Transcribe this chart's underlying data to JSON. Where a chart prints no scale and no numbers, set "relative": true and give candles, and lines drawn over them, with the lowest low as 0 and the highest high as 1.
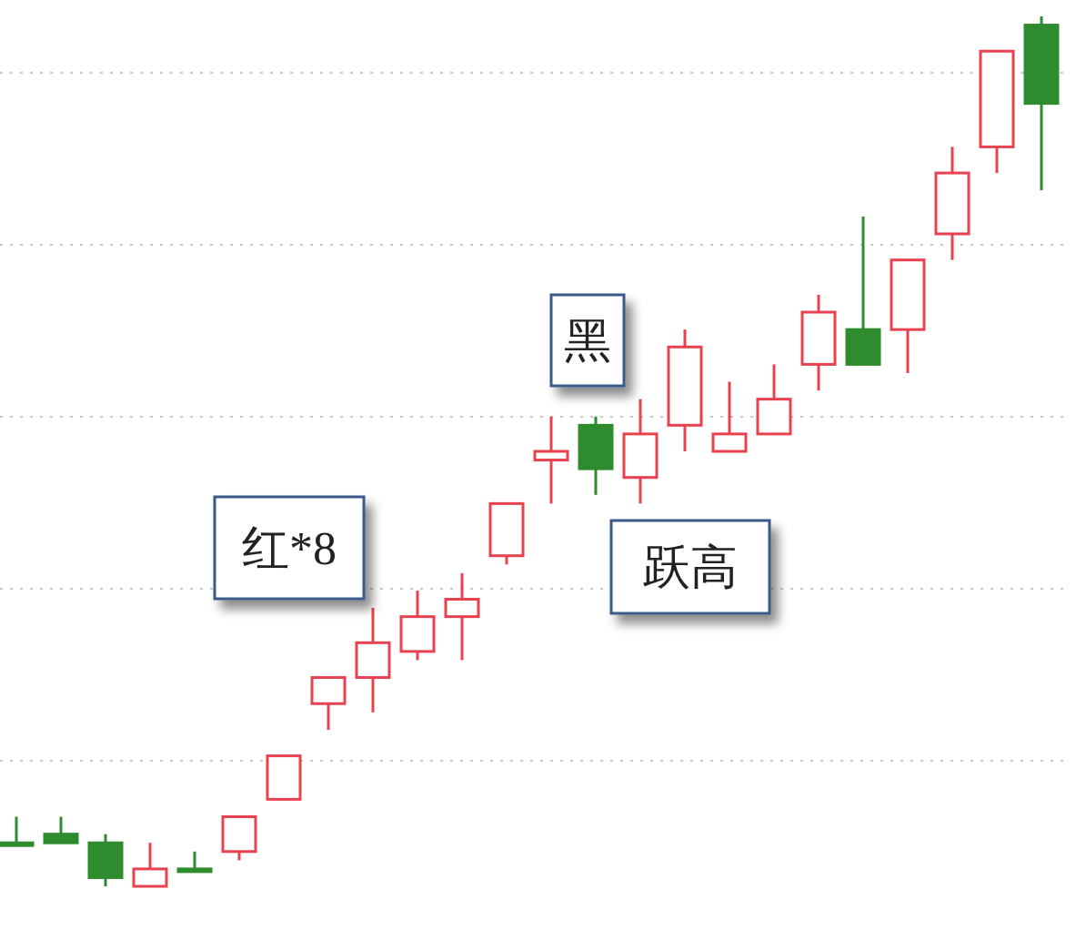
{
  "chart_data": {
    "type": "candlestick",
    "relative": true,
    "grid": "y",
    "categories": [
      null,
      null,
      null,
      null,
      null,
      null,
      null,
      null,
      null,
      null,
      null,
      null,
      null,
      null,
      null,
      null,
      null,
      null,
      null,
      null,
      null,
      null,
      null,
      null
    ],
    "ohlc": [
      [
        0.05,
        0.08,
        0.05,
        0.05
      ],
      [
        0.06,
        0.08,
        0.05,
        0.05
      ],
      [
        0.05,
        0.06,
        0,
        0.01
      ],
      [
        0,
        0.05,
        0,
        0.02
      ],
      [
        0.02,
        0.04,
        0.02,
        0.02
      ],
      [
        0.04,
        0.08,
        0.03,
        0.08
      ],
      [
        0.1,
        0.15,
        0.1,
        0.15
      ],
      [
        0.21,
        0.24,
        0.18,
        0.24
      ],
      [
        0.24,
        0.32,
        0.2,
        0.28
      ],
      [
        0.27,
        0.34,
        0.26,
        0.31
      ],
      [
        0.31,
        0.36,
        0.26,
        0.33
      ],
      [
        0.38,
        0.44,
        0.37,
        0.44
      ],
      [
        0.49,
        0.54,
        0.44,
        0.5
      ],
      [
        0.53,
        0.54,
        0.45,
        0.48
      ],
      [
        0.47,
        0.56,
        0.44,
        0.52
      ],
      [
        0.53,
        0.64,
        0.5,
        0.62
      ],
      [
        0.5,
        0.58,
        0.5,
        0.52
      ],
      [
        0.52,
        0.6,
        0.52,
        0.56
      ],
      [
        0.6,
        0.68,
        0.57,
        0.66
      ],
      [
        0.64,
        0.77,
        0.6,
        0.6
      ],
      [
        0.64,
        0.72,
        0.59,
        0.72
      ],
      [
        0.75,
        0.85,
        0.72,
        0.82
      ],
      [
        0.85,
        0.96,
        0.82,
        0.96
      ],
      [
        0.99,
        1,
        0.8,
        0.9
      ]
    ],
    "colors": [
      "#2e8b2e",
      "#2e8b2e",
      "#2e8b2e",
      "#e8414f",
      "#2e8b2e",
      "#e8414f",
      "#e8414f",
      "#e8414f",
      "#e8414f",
      "#e8414f",
      "#e8414f",
      "#e8414f",
      "#e8414f",
      "#2e8b2e",
      "#e8414f",
      "#e8414f",
      "#e8414f",
      "#e8414f",
      "#e8414f",
      "#2e8b2e",
      "#e8414f",
      "#e8414f",
      "#e8414f",
      "#2e8b2e"
    ],
    "annotations": [
      "红*8",
      "黑",
      "跃高"
    ]
  }
}
